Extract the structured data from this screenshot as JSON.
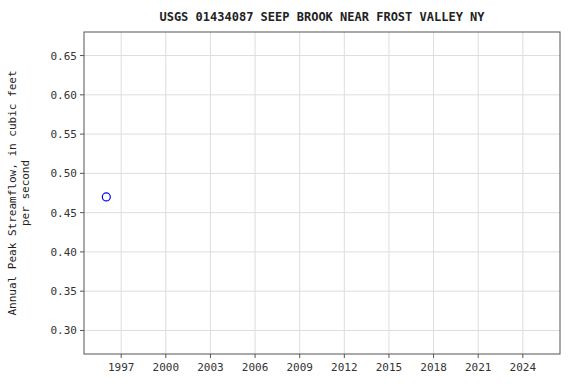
{
  "chart_data": {
    "type": "scatter",
    "title": "USGS 01434087 SEEP BROOK NEAR FROST VALLEY NY",
    "ylabel": "Annual Peak Streamflow, in cubic feet\nper second",
    "x": [
      1996
    ],
    "values": [
      0.47
    ],
    "color": "#0000ff",
    "marker": "circle-open",
    "xlim": [
      1994.5,
      2026.5
    ],
    "ylim": [
      0.27,
      0.68
    ],
    "xticks": [
      1997,
      2000,
      2003,
      2006,
      2009,
      2012,
      2015,
      2018,
      2021,
      2024
    ],
    "yticks": [
      {
        "value": 0.3,
        "label": "0.30"
      },
      0.35,
      {
        "value": 0.4,
        "label": "0.40"
      },
      0.45,
      {
        "value": 0.5,
        "label": "0.50"
      },
      0.55,
      {
        "value": 0.6,
        "label": "0.60"
      },
      0.65
    ],
    "grid": true
  }
}
